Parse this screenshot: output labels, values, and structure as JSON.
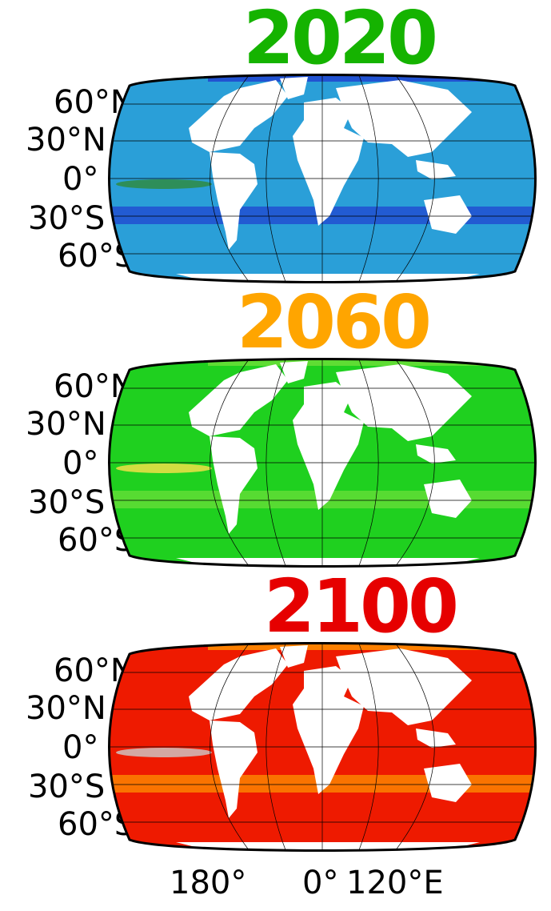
{
  "panels": [
    {
      "year": "2020",
      "year_color": "#15b300",
      "ocean_color": "#2a9fd8",
      "band_color": "#1f3fd0",
      "accent_color": "#2f8a3a"
    },
    {
      "year": "2060",
      "year_color": "#ffa500",
      "ocean_color": "#1fd01f",
      "band_color": "#6fe03a",
      "accent_color": "#ffe04a"
    },
    {
      "year": "2100",
      "year_color": "#e60000",
      "ocean_color": "#ee1a00",
      "band_color": "#ff9a00",
      "accent_color": "#cccccc"
    }
  ],
  "lat_labels": [
    "60°N",
    "30°N",
    "0°",
    "30°S",
    "60°S"
  ],
  "lon_labels": [
    "180°",
    "0°",
    "120°E"
  ]
}
